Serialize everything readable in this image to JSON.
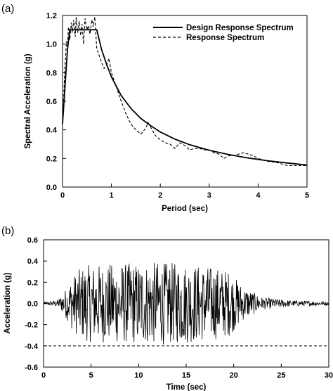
{
  "panels": {
    "a": "(a)",
    "b": "(b)"
  },
  "chart_data": [
    {
      "type": "line",
      "panel_label": "(a)",
      "xlabel": "Period (sec)",
      "ylabel": "Spectral Acceleration (g)",
      "xlim": [
        0,
        5
      ],
      "ylim": [
        0,
        1.2
      ],
      "xticks": [
        "0",
        "1",
        "2",
        "3",
        "4",
        "5"
      ],
      "yticks": [
        "0.0",
        "0.2",
        "0.4",
        "0.6",
        "0.8",
        "1.0",
        "1.2"
      ],
      "grid": false,
      "legend_position": "top-right",
      "series": [
        {
          "name": "Design Response Spectrum",
          "style": "solid",
          "x": [
            0,
            0.05,
            0.1,
            0.15,
            0.2,
            0.3,
            0.4,
            0.5,
            0.6,
            0.7,
            0.8,
            0.9,
            1.0,
            1.2,
            1.4,
            1.6,
            1.8,
            2.0,
            2.3,
            2.6,
            3.0,
            3.4,
            3.8,
            4.2,
            4.6,
            5.0
          ],
          "y": [
            0.44,
            0.7,
            0.96,
            1.1,
            1.1,
            1.1,
            1.1,
            1.1,
            1.1,
            1.1,
            0.96,
            0.86,
            0.77,
            0.64,
            0.55,
            0.48,
            0.43,
            0.385,
            0.335,
            0.296,
            0.257,
            0.227,
            0.203,
            0.184,
            0.168,
            0.154
          ]
        },
        {
          "name": "Response Spectrum",
          "style": "dashed",
          "x": [
            0,
            0.05,
            0.08,
            0.1,
            0.12,
            0.15,
            0.18,
            0.2,
            0.23,
            0.26,
            0.28,
            0.31,
            0.34,
            0.37,
            0.4,
            0.43,
            0.46,
            0.5,
            0.53,
            0.56,
            0.6,
            0.63,
            0.66,
            0.7,
            0.75,
            0.8,
            0.85,
            0.9,
            0.95,
            1.0,
            1.1,
            1.2,
            1.3,
            1.4,
            1.5,
            1.6,
            1.7,
            1.75,
            1.8,
            1.9,
            2.0,
            2.1,
            2.2,
            2.3,
            2.4,
            2.5,
            2.6,
            2.7,
            2.8,
            2.9,
            3.0,
            3.1,
            3.2,
            3.3,
            3.4,
            3.5,
            3.6,
            3.7,
            3.8,
            3.9,
            4.0,
            4.2,
            4.4,
            4.6,
            4.8,
            5.0
          ],
          "y": [
            0.44,
            0.85,
            1.02,
            0.98,
            1.12,
            1.03,
            1.15,
            1.08,
            1.17,
            1.05,
            1.19,
            1.08,
            1.16,
            1.06,
            1.14,
            1.0,
            1.18,
            1.1,
            1.13,
            1.07,
            1.17,
            1.12,
            1.19,
            0.97,
            0.92,
            0.87,
            0.83,
            0.85,
            0.9,
            0.8,
            0.7,
            0.6,
            0.51,
            0.44,
            0.4,
            0.37,
            0.41,
            0.45,
            0.42,
            0.36,
            0.33,
            0.31,
            0.3,
            0.27,
            0.31,
            0.29,
            0.26,
            0.27,
            0.27,
            0.26,
            0.26,
            0.24,
            0.23,
            0.2,
            0.22,
            0.22,
            0.23,
            0.24,
            0.23,
            0.22,
            0.2,
            0.18,
            0.17,
            0.15,
            0.15,
            0.15
          ]
        }
      ]
    },
    {
      "type": "line",
      "panel_label": "(b)",
      "xlabel": "Time (sec)",
      "ylabel": "Acceleration (g)",
      "xlim": [
        0,
        30
      ],
      "ylim": [
        -0.6,
        0.6
      ],
      "xticks": [
        "0",
        "5",
        "10",
        "15",
        "20",
        "25",
        "30"
      ],
      "yticks": [
        "-0.6",
        "-0.4",
        "-0.2",
        "0.0",
        "0.2",
        "0.4",
        "0.6"
      ],
      "grid": false,
      "reference_line": {
        "y": -0.4,
        "style": "dashed"
      },
      "series": [
        {
          "style": "solid",
          "envelope": {
            "t": [
              0,
              1.5,
              2.0,
              2.5,
              3.0,
              4.0,
              5.0,
              8.0,
              12.0,
              15.0,
              18.0,
              19.5,
              21.0,
              23.0,
              26.0,
              30.0
            ],
            "amp": [
              0.01,
              0.03,
              0.08,
              0.14,
              0.22,
              0.3,
              0.32,
              0.33,
              0.34,
              0.33,
              0.3,
              0.27,
              0.14,
              0.05,
              0.025,
              0.015
            ]
          }
        }
      ]
    }
  ]
}
